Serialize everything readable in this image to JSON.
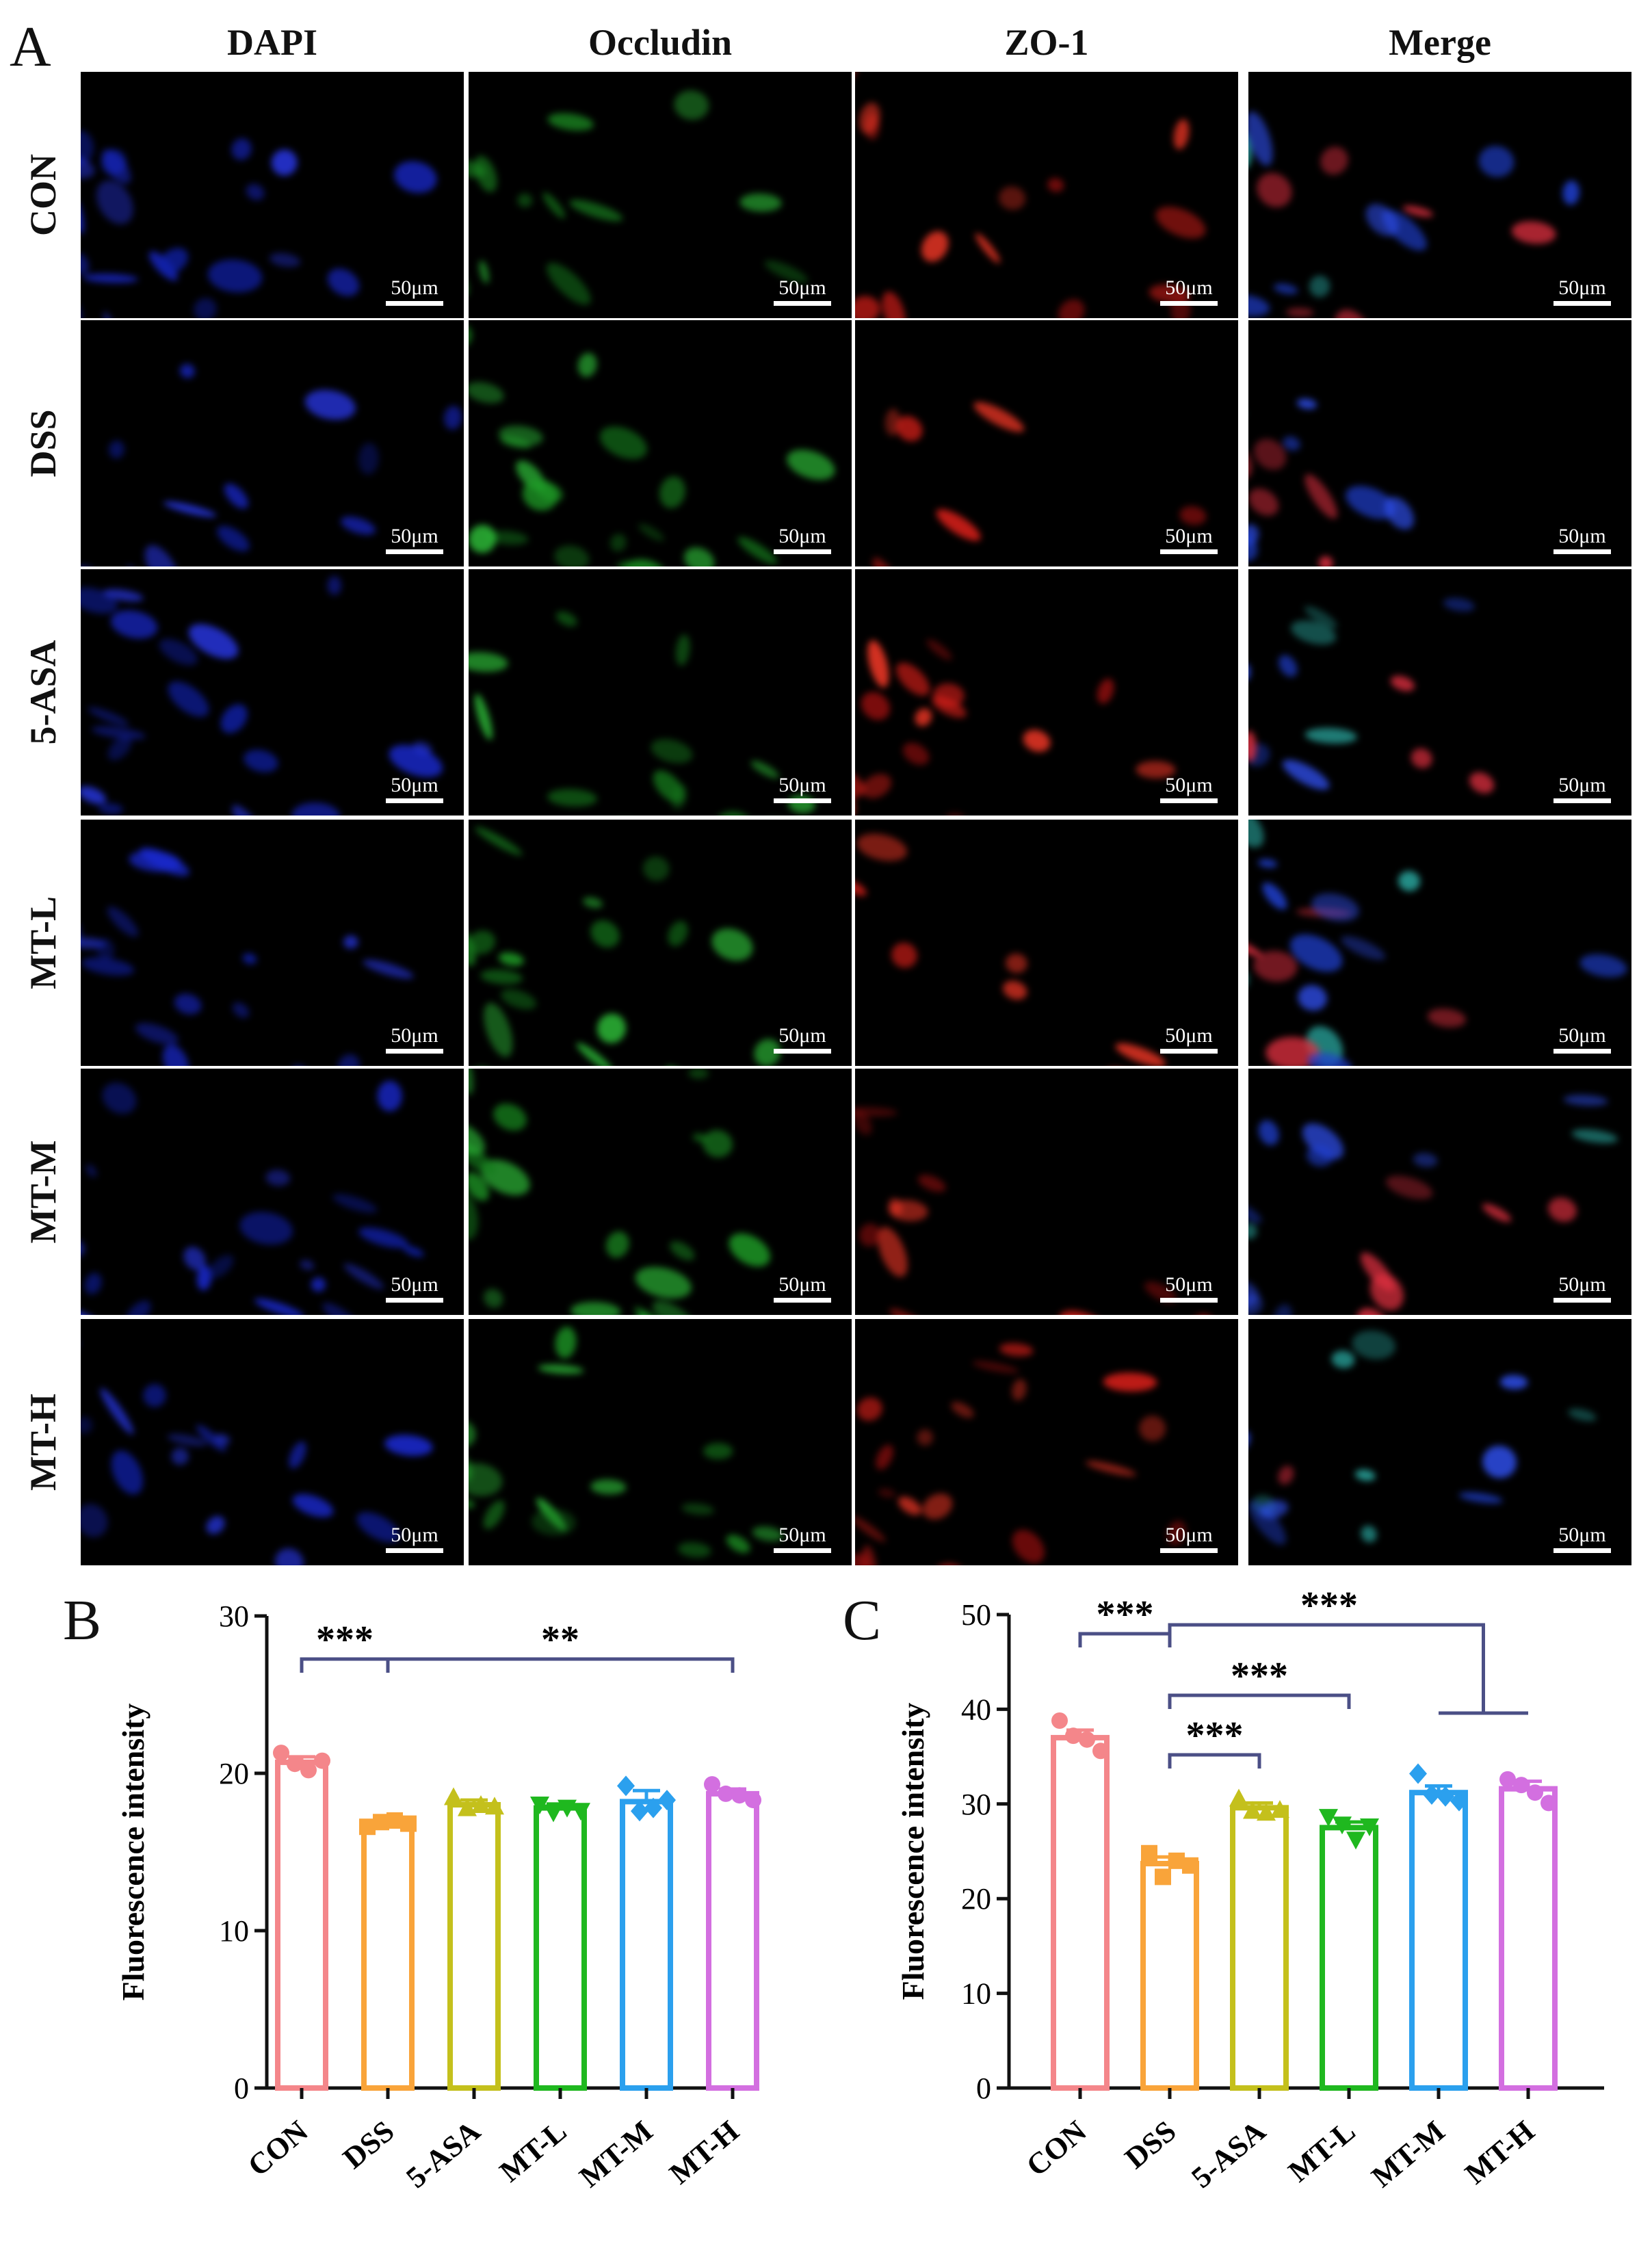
{
  "figure": {
    "panel_letters": [
      "A",
      "B",
      "C"
    ],
    "columns": [
      "DAPI",
      "Occludin",
      "ZO-1",
      "Merge"
    ],
    "rows": [
      "CON",
      "DSS",
      "5-ASA",
      "MT-L",
      "MT-M",
      "MT-H"
    ],
    "scale_bar_label": "50μm",
    "channel_colors": {
      "DAPI": "#1a2ad6",
      "Occludin": "#1fa82a",
      "ZO-1": "#e8201a",
      "Merge": "#2f4fd0"
    }
  },
  "chart_data": [
    {
      "panel": "B",
      "type": "bar",
      "categories": [
        "CON",
        "DSS",
        "5-ASA",
        "MT-L",
        "MT-M",
        "MT-H"
      ],
      "values": [
        20.7,
        16.8,
        18.0,
        17.8,
        18.2,
        18.7
      ],
      "errors": [
        0.35,
        0.2,
        0.3,
        0.25,
        0.7,
        0.3
      ],
      "points": [
        [
          21.3,
          20.6,
          20.2,
          20.8
        ],
        [
          16.6,
          16.9,
          17.0,
          16.8
        ],
        [
          18.5,
          17.8,
          18.0,
          17.9
        ],
        [
          18.0,
          17.5,
          17.8,
          17.6
        ],
        [
          19.2,
          17.6,
          17.8,
          18.3
        ],
        [
          19.3,
          18.7,
          18.6,
          18.3
        ]
      ],
      "markers": [
        "circle",
        "square",
        "triangle",
        "triangle-down",
        "diamond",
        "circle"
      ],
      "colors": [
        "#f4868a",
        "#f9a43a",
        "#c4c01c",
        "#1fb81f",
        "#2ba0ee",
        "#d36fe0"
      ],
      "ylabel": "Fluorescence intensity",
      "ylim": [
        0,
        30
      ],
      "yticks": [
        0,
        10,
        20,
        30
      ],
      "significance": [
        {
          "from": "CON",
          "to": "DSS",
          "label": "***"
        },
        {
          "from": "DSS",
          "to": "MT-H",
          "label": "**"
        }
      ]
    },
    {
      "panel": "C",
      "type": "bar",
      "categories": [
        "CON",
        "DSS",
        "5-ASA",
        "MT-L",
        "MT-M",
        "MT-H"
      ],
      "values": [
        37.0,
        23.7,
        29.6,
        27.5,
        31.2,
        31.6
      ],
      "errors": [
        0.8,
        0.7,
        0.5,
        0.6,
        0.7,
        0.8
      ],
      "points": [
        [
          38.8,
          37.2,
          36.8,
          35.6
        ],
        [
          24.8,
          22.3,
          24.0,
          23.5
        ],
        [
          30.6,
          29.3,
          29.1,
          29.4
        ],
        [
          28.6,
          27.8,
          26.2,
          27.6
        ],
        [
          33.2,
          31.0,
          30.8,
          30.3
        ],
        [
          32.6,
          32.0,
          31.2,
          30.1
        ]
      ],
      "markers": [
        "circle",
        "square",
        "triangle",
        "triangle-down",
        "diamond",
        "circle"
      ],
      "colors": [
        "#f4868a",
        "#f9a43a",
        "#c4c01c",
        "#1fb81f",
        "#2ba0ee",
        "#d36fe0"
      ],
      "ylabel": "Fluorescence intensity",
      "ylim": [
        0,
        50
      ],
      "yticks": [
        0,
        10,
        20,
        30,
        40,
        50
      ],
      "significance": [
        {
          "from": "CON",
          "to": "DSS",
          "label": "***"
        },
        {
          "from": "DSS",
          "to": "5-ASA",
          "label": "***"
        },
        {
          "from": "DSS",
          "to": "MT-L",
          "label": "***"
        },
        {
          "from": "DSS",
          "to": [
            "MT-M",
            "MT-H"
          ],
          "label": "***"
        }
      ]
    }
  ]
}
